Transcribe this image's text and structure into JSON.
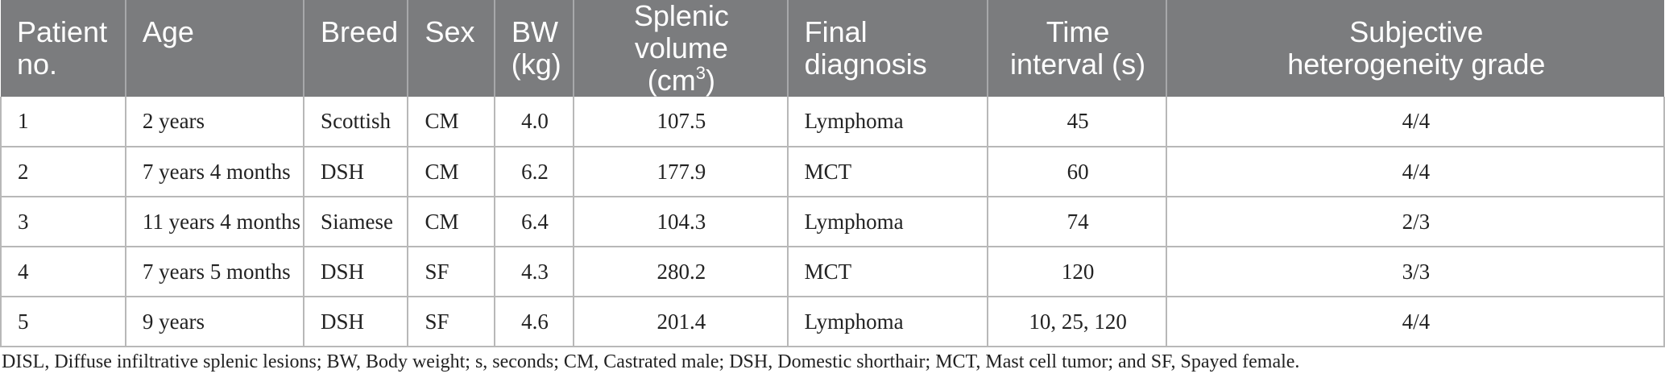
{
  "table": {
    "headers": {
      "patient_line1": "Patient",
      "patient_line2": "no.",
      "age": "Age",
      "breed": "Breed",
      "sex": "Sex",
      "bw_line1": "BW",
      "bw_line2": "(kg)",
      "splenic_line1": "Splenic volume",
      "splenic_unit": "(cm",
      "splenic_sup": "3",
      "splenic_close": ")",
      "diag_line1": "Final",
      "diag_line2": "diagnosis",
      "time_line1": "Time",
      "time_line2": "interval (s)",
      "grade_line1": "Subjective",
      "grade_line2": "heterogeneity grade"
    },
    "rows": [
      {
        "no": "1",
        "age": "2 years",
        "breed": "Scottish",
        "sex": "CM",
        "bw": "4.0",
        "volume": "107.5",
        "diagnosis": "Lymphoma",
        "time": "45",
        "grade": "4/4"
      },
      {
        "no": "2",
        "age": "7 years 4 months",
        "breed": "DSH",
        "sex": "CM",
        "bw": "6.2",
        "volume": "177.9",
        "diagnosis": "MCT",
        "time": "60",
        "grade": "4/4"
      },
      {
        "no": "3",
        "age": "11 years 4 months",
        "breed": "Siamese",
        "sex": "CM",
        "bw": "6.4",
        "volume": "104.3",
        "diagnosis": "Lymphoma",
        "time": "74",
        "grade": "2/3"
      },
      {
        "no": "4",
        "age": "7 years 5 months",
        "breed": "DSH",
        "sex": "SF",
        "bw": "4.3",
        "volume": "280.2",
        "diagnosis": "MCT",
        "time": "120",
        "grade": "3/3"
      },
      {
        "no": "5",
        "age": "9 years",
        "breed": "DSH",
        "sex": "SF",
        "bw": "4.6",
        "volume": "201.4",
        "diagnosis": "Lymphoma",
        "time": "10, 25, 120",
        "grade": "4/4"
      }
    ]
  },
  "footnote": "DISL, Diffuse infiltrative splenic lesions; BW, Body weight; s, seconds; CM, Castrated male; DSH, Domestic shorthair; MCT, Mast cell tumor; and SF, Spayed female."
}
